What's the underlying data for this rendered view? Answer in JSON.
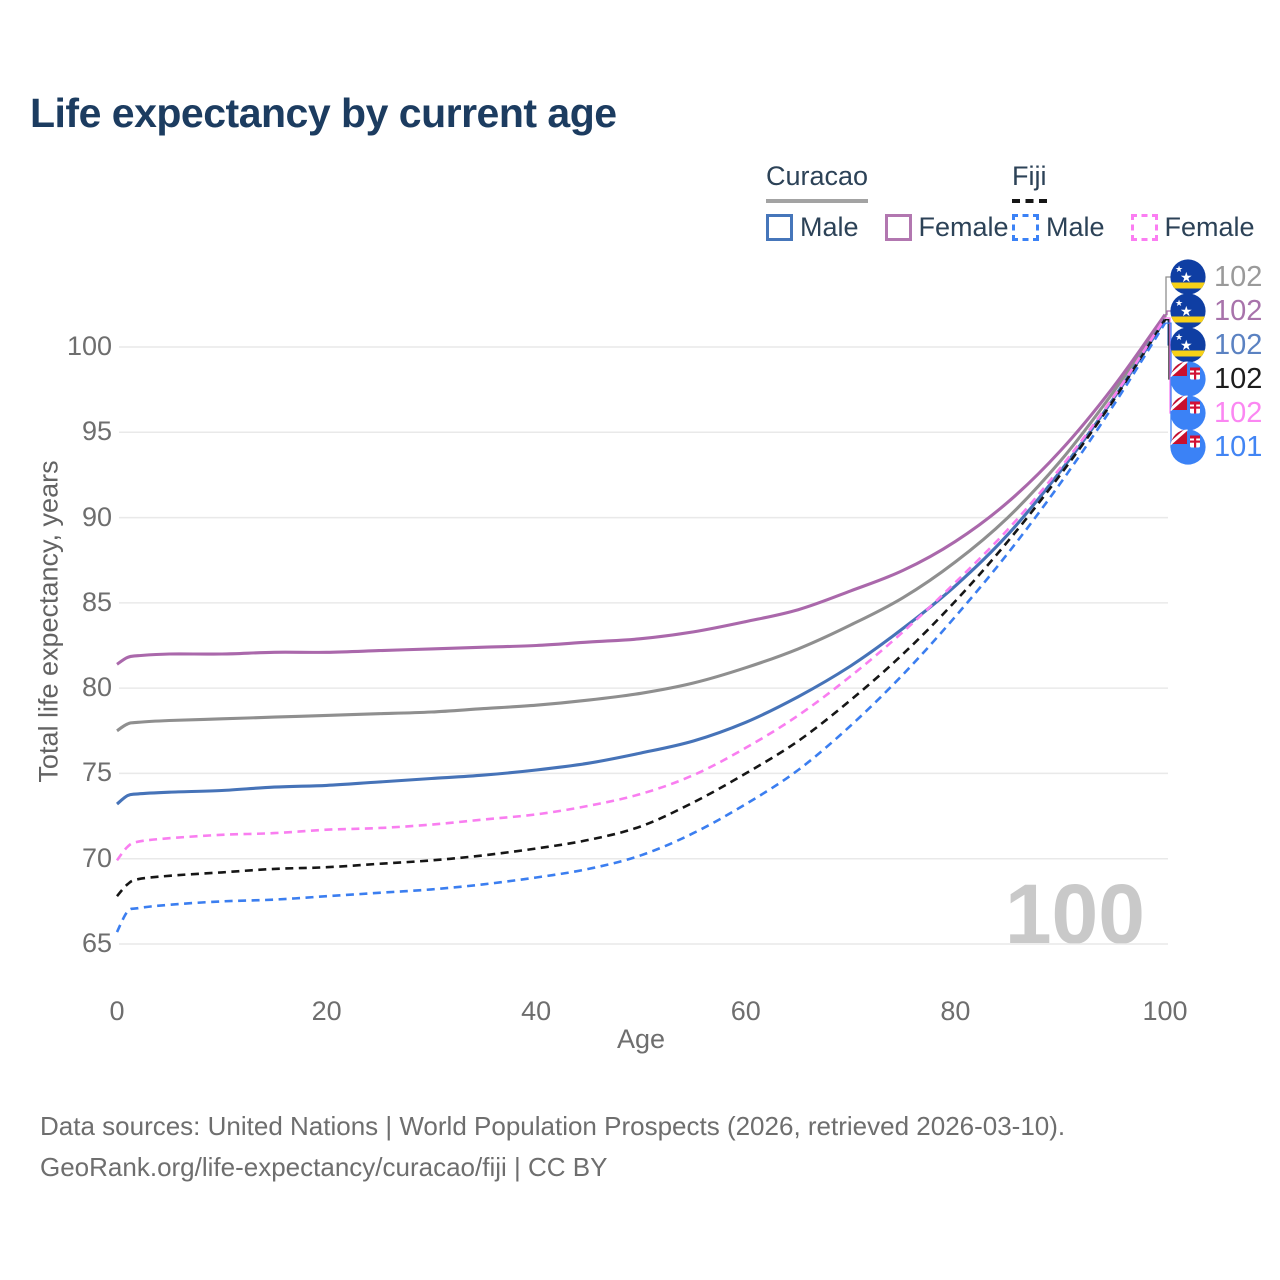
{
  "title": "Life expectancy by current age",
  "legend": {
    "curacao": {
      "label": "Curacao",
      "line_style": "solid",
      "rule_color": "#a3a3a3",
      "male_label": "Male",
      "male_color": "#4676ba",
      "female_label": "Female",
      "female_color": "#b277b0"
    },
    "fiji": {
      "label": "Fiji",
      "line_style": "dashed",
      "rule_color": "#161616",
      "male_label": "Male",
      "male_color": "#3b82f6",
      "female_label": "Female",
      "female_color": "#fb7df2"
    }
  },
  "chart_data": {
    "type": "line",
    "title": "Life expectancy by current age",
    "xlabel": "Age",
    "ylabel": "Total life expectancy, years",
    "xlim": [
      0,
      100
    ],
    "ylim": [
      65,
      102
    ],
    "x_ticks": [
      0,
      20,
      40,
      60,
      80,
      100
    ],
    "y_ticks": [
      65,
      70,
      75,
      80,
      85,
      90,
      95,
      100
    ],
    "grid": "horizontal",
    "watermark": "100",
    "x": [
      0,
      1,
      2,
      5,
      10,
      15,
      20,
      25,
      30,
      35,
      40,
      45,
      50,
      55,
      60,
      65,
      70,
      75,
      80,
      85,
      90,
      95,
      100
    ],
    "series": [
      {
        "name": "Curacao Total",
        "color": "#8f8f8f",
        "dash": "solid",
        "values": [
          77.5,
          77.9,
          78.0,
          78.1,
          78.2,
          78.3,
          78.4,
          78.5,
          78.6,
          78.8,
          79.0,
          79.3,
          79.7,
          80.3,
          81.2,
          82.3,
          83.7,
          85.3,
          87.4,
          90.0,
          93.3,
          97.3,
          101.8
        ]
      },
      {
        "name": "Curacao Female",
        "color": "#aa68ab",
        "dash": "solid",
        "values": [
          81.4,
          81.8,
          81.9,
          82.0,
          82.0,
          82.1,
          82.1,
          82.2,
          82.3,
          82.4,
          82.5,
          82.7,
          82.9,
          83.3,
          83.9,
          84.6,
          85.7,
          86.9,
          88.6,
          90.9,
          93.9,
          97.6,
          101.9
        ]
      },
      {
        "name": "Curacao Male",
        "color": "#4673b8",
        "dash": "solid",
        "values": [
          73.2,
          73.7,
          73.8,
          73.9,
          74.0,
          74.2,
          74.3,
          74.5,
          74.7,
          74.9,
          75.2,
          75.6,
          76.2,
          76.9,
          78.0,
          79.5,
          81.3,
          83.5,
          86.0,
          89.0,
          92.7,
          96.9,
          101.6
        ]
      },
      {
        "name": "Fiji Total",
        "color": "#161616",
        "dash": "dashed",
        "values": [
          67.8,
          68.5,
          68.8,
          69.0,
          69.2,
          69.4,
          69.5,
          69.7,
          69.9,
          70.2,
          70.6,
          71.1,
          71.9,
          73.3,
          75.0,
          76.9,
          79.3,
          82.0,
          85.1,
          88.6,
          92.5,
          96.8,
          101.6
        ]
      },
      {
        "name": "Fiji Female",
        "color": "#f97ef0",
        "dash": "dashed",
        "values": [
          69.9,
          70.7,
          71.0,
          71.2,
          71.4,
          71.5,
          71.7,
          71.8,
          72.0,
          72.3,
          72.6,
          73.1,
          73.8,
          74.9,
          76.5,
          78.4,
          80.7,
          83.3,
          86.2,
          89.3,
          92.9,
          97.0,
          101.7
        ]
      },
      {
        "name": "Fiji Male",
        "color": "#3b7ef0",
        "dash": "dashed",
        "values": [
          65.7,
          66.9,
          67.1,
          67.3,
          67.5,
          67.6,
          67.8,
          68.0,
          68.2,
          68.5,
          68.9,
          69.4,
          70.2,
          71.5,
          73.2,
          75.2,
          77.8,
          80.8,
          84.2,
          87.9,
          92.0,
          96.5,
          101.4
        ]
      }
    ],
    "end_labels": [
      {
        "country": "Curacao",
        "flag": "curacao-flag-icon",
        "series": "Curacao Total",
        "value": "102",
        "color": "#9a9a9a"
      },
      {
        "country": "Curacao",
        "flag": "curacao-flag-icon",
        "series": "Curacao Female",
        "value": "102",
        "color": "#a873ab"
      },
      {
        "country": "Curacao",
        "flag": "curacao-flag-icon",
        "series": "Curacao Male",
        "value": "102",
        "color": "#5b82c2"
      },
      {
        "country": "Fiji",
        "flag": "fiji-flag-icon",
        "series": "Fiji Total",
        "value": "102",
        "color": "#1c1c1c"
      },
      {
        "country": "Fiji",
        "flag": "fiji-flag-icon",
        "series": "Fiji Female",
        "value": "102",
        "color": "#fb87f2"
      },
      {
        "country": "Fiji",
        "flag": "fiji-flag-icon",
        "series": "Fiji Male",
        "value": "101",
        "color": "#4285f4"
      }
    ]
  },
  "footer": {
    "line1": "Data sources: United Nations | World Population Prospects (2026, retrieved 2026-03-10).",
    "line2": "GeoRank.org/life-expectancy/curacao/fiji | CC BY"
  }
}
